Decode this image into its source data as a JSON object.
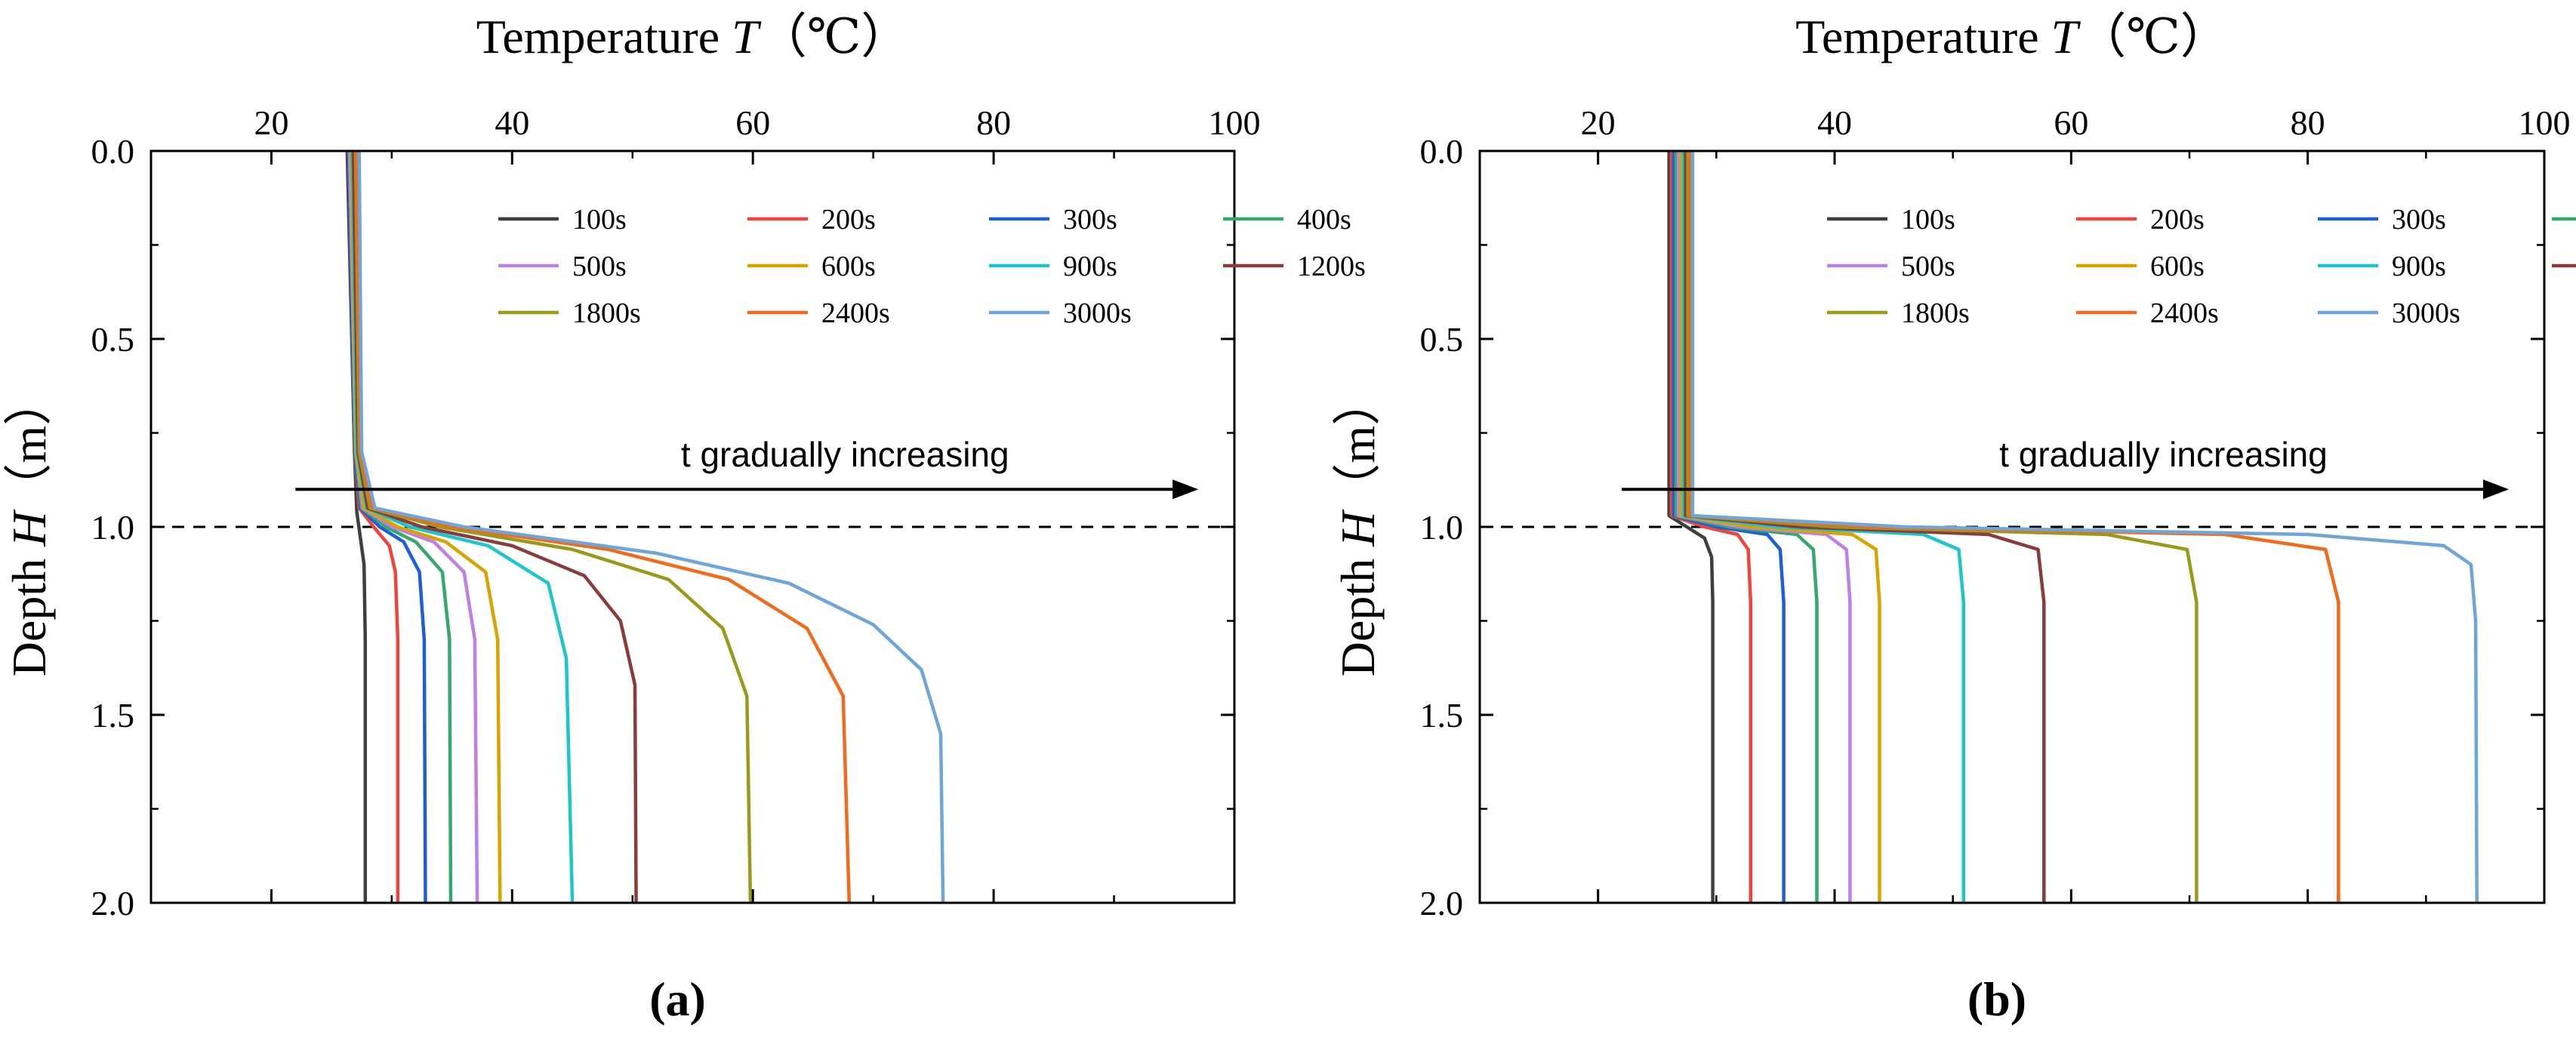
{
  "colors": {
    "100s": "#3f3f3f",
    "200s": "#f0443a",
    "300s": "#1f5fd6",
    "400s": "#35a86b",
    "500s": "#bf7fe6",
    "600s": "#d9a300",
    "900s": "#1cc6cc",
    "1200s": "#8a3b3b",
    "1800s": "#9a9a1a",
    "2400s": "#f26a1b",
    "3000s": "#6ea6d9"
  },
  "chart_data": [
    {
      "type": "line",
      "panel_label": "(a)",
      "xlabel_prefix": "Temperature ",
      "xlabel_var": "T",
      "xlabel_unit": "（℃）",
      "ylabel_prefix": "Depth ",
      "ylabel_var": "H",
      "ylabel_unit": "（m）",
      "xlim": [
        10,
        100
      ],
      "ylim": [
        2.0,
        0.0
      ],
      "xticks": [
        "20",
        "40",
        "60",
        "80",
        "100"
      ],
      "yticks": [
        "0.0",
        "0.5",
        "1.0",
        "1.5",
        "2.0"
      ],
      "dashed_interface_depth": 1.0,
      "annotation": {
        "text": "t gradually increasing",
        "arrow_from_x": 22,
        "arrow_to_x": 97,
        "depth": 0.9
      },
      "series": [
        {
          "name": "100s",
          "top_value": 26.3,
          "deep_value": 27.8,
          "points": [
            [
              26.3,
              0.0
            ],
            [
              26.9,
              0.8
            ],
            [
              27.1,
              0.96
            ],
            [
              27.4,
              1.03
            ],
            [
              27.7,
              1.1
            ],
            [
              27.8,
              1.3
            ],
            [
              27.8,
              2.0
            ]
          ]
        },
        {
          "name": "200s",
          "top_value": 26.4,
          "deep_value": 30.5,
          "points": [
            [
              26.4,
              0.0
            ],
            [
              26.9,
              0.8
            ],
            [
              27.3,
              0.95
            ],
            [
              28.5,
              1.0
            ],
            [
              29.8,
              1.05
            ],
            [
              30.3,
              1.12
            ],
            [
              30.5,
              1.3
            ],
            [
              30.5,
              2.0
            ]
          ]
        },
        {
          "name": "300s",
          "top_value": 26.4,
          "deep_value": 32.8,
          "points": [
            [
              26.4,
              0.0
            ],
            [
              26.9,
              0.8
            ],
            [
              27.4,
              0.95
            ],
            [
              29.0,
              1.0
            ],
            [
              31.0,
              1.04
            ],
            [
              32.3,
              1.12
            ],
            [
              32.7,
              1.3
            ],
            [
              32.8,
              2.0
            ]
          ]
        },
        {
          "name": "400s",
          "top_value": 26.5,
          "deep_value": 34.9,
          "points": [
            [
              26.5,
              0.0
            ],
            [
              27.0,
              0.8
            ],
            [
              27.5,
              0.95
            ],
            [
              29.5,
              1.0
            ],
            [
              32.0,
              1.04
            ],
            [
              34.2,
              1.12
            ],
            [
              34.8,
              1.3
            ],
            [
              34.9,
              2.0
            ]
          ]
        },
        {
          "name": "500s",
          "top_value": 26.5,
          "deep_value": 37.1,
          "points": [
            [
              26.5,
              0.0
            ],
            [
              27.0,
              0.8
            ],
            [
              27.6,
              0.95
            ],
            [
              30.0,
              1.0
            ],
            [
              33.5,
              1.04
            ],
            [
              36.0,
              1.12
            ],
            [
              36.9,
              1.3
            ],
            [
              37.1,
              2.0
            ]
          ]
        },
        {
          "name": "600s",
          "top_value": 26.6,
          "deep_value": 39.0,
          "points": [
            [
              26.6,
              0.0
            ],
            [
              27.0,
              0.8
            ],
            [
              27.7,
              0.95
            ],
            [
              30.5,
              1.0
            ],
            [
              34.5,
              1.04
            ],
            [
              37.8,
              1.12
            ],
            [
              38.8,
              1.3
            ],
            [
              39.0,
              2.0
            ]
          ]
        },
        {
          "name": "900s",
          "top_value": 26.7,
          "deep_value": 45.0,
          "points": [
            [
              26.7,
              0.0
            ],
            [
              27.1,
              0.8
            ],
            [
              27.9,
              0.95
            ],
            [
              31.5,
              1.0
            ],
            [
              38.0,
              1.05
            ],
            [
              43.0,
              1.15
            ],
            [
              44.5,
              1.35
            ],
            [
              45.0,
              2.0
            ]
          ]
        },
        {
          "name": "1200s",
          "top_value": 26.8,
          "deep_value": 50.3,
          "points": [
            [
              26.8,
              0.0
            ],
            [
              27.2,
              0.8
            ],
            [
              28.0,
              0.95
            ],
            [
              32.5,
              1.0
            ],
            [
              40.0,
              1.05
            ],
            [
              46.0,
              1.13
            ],
            [
              49.0,
              1.25
            ],
            [
              50.2,
              1.42
            ],
            [
              50.3,
              2.0
            ]
          ]
        },
        {
          "name": "1800s",
          "top_value": 27.0,
          "deep_value": 59.8,
          "points": [
            [
              27.0,
              0.0
            ],
            [
              27.3,
              0.8
            ],
            [
              28.2,
              0.95
            ],
            [
              34.0,
              1.0
            ],
            [
              45.0,
              1.06
            ],
            [
              53.0,
              1.14
            ],
            [
              57.5,
              1.27
            ],
            [
              59.5,
              1.45
            ],
            [
              59.8,
              2.0
            ]
          ]
        },
        {
          "name": "2400s",
          "top_value": 27.1,
          "deep_value": 68.0,
          "points": [
            [
              27.1,
              0.0
            ],
            [
              27.4,
              0.8
            ],
            [
              28.4,
              0.95
            ],
            [
              35.0,
              1.0
            ],
            [
              48.0,
              1.06
            ],
            [
              58.0,
              1.14
            ],
            [
              64.5,
              1.27
            ],
            [
              67.5,
              1.45
            ],
            [
              68.0,
              2.0
            ]
          ]
        },
        {
          "name": "3000s",
          "top_value": 27.3,
          "deep_value": 75.8,
          "points": [
            [
              27.3,
              0.0
            ],
            [
              27.5,
              0.8
            ],
            [
              28.6,
              0.95
            ],
            [
              36.0,
              1.0
            ],
            [
              52.0,
              1.07
            ],
            [
              63.0,
              1.15
            ],
            [
              70.0,
              1.26
            ],
            [
              74.0,
              1.38
            ],
            [
              75.6,
              1.55
            ],
            [
              75.8,
              2.0
            ]
          ]
        }
      ]
    },
    {
      "type": "line",
      "panel_label": "(b)",
      "xlabel_prefix": "Temperature ",
      "xlabel_var": "T",
      "xlabel_unit": "（℃）",
      "ylabel_prefix": "Depth ",
      "ylabel_var": "H",
      "ylabel_unit": "（m）",
      "xlim": [
        10,
        100
      ],
      "ylim": [
        2.0,
        0.0
      ],
      "xticks": [
        "20",
        "40",
        "60",
        "80",
        "100"
      ],
      "yticks": [
        "0.0",
        "0.5",
        "1.0",
        "1.5",
        "2.0"
      ],
      "dashed_interface_depth": 1.0,
      "annotation": {
        "text": "t gradually increasing",
        "arrow_from_x": 22,
        "arrow_to_x": 97,
        "depth": 0.9
      },
      "series": [
        {
          "name": "100s",
          "top_value": 26.0,
          "deep_value": 29.7,
          "points": [
            [
              26.0,
              0.0
            ],
            [
              26.0,
              0.97
            ],
            [
              27.5,
              1.0
            ],
            [
              29.0,
              1.03
            ],
            [
              29.6,
              1.08
            ],
            [
              29.7,
              1.2
            ],
            [
              29.7,
              2.0
            ]
          ]
        },
        {
          "name": "200s",
          "top_value": 26.2,
          "deep_value": 32.9,
          "points": [
            [
              26.2,
              0.0
            ],
            [
              26.2,
              0.97
            ],
            [
              29.0,
              1.0
            ],
            [
              31.8,
              1.02
            ],
            [
              32.7,
              1.06
            ],
            [
              32.9,
              1.2
            ],
            [
              32.9,
              2.0
            ]
          ]
        },
        {
          "name": "300s",
          "top_value": 26.4,
          "deep_value": 35.7,
          "points": [
            [
              26.4,
              0.0
            ],
            [
              26.4,
              0.97
            ],
            [
              30.0,
              1.0
            ],
            [
              34.3,
              1.02
            ],
            [
              35.4,
              1.06
            ],
            [
              35.7,
              1.2
            ],
            [
              35.7,
              2.0
            ]
          ]
        },
        {
          "name": "400s",
          "top_value": 26.6,
          "deep_value": 38.5,
          "points": [
            [
              26.6,
              0.0
            ],
            [
              26.6,
              0.97
            ],
            [
              31.0,
              1.0
            ],
            [
              36.8,
              1.02
            ],
            [
              38.2,
              1.06
            ],
            [
              38.5,
              1.2
            ],
            [
              38.5,
              2.0
            ]
          ]
        },
        {
          "name": "500s",
          "top_value": 26.8,
          "deep_value": 41.3,
          "points": [
            [
              26.8,
              0.0
            ],
            [
              26.8,
              0.97
            ],
            [
              32.0,
              1.0
            ],
            [
              39.3,
              1.02
            ],
            [
              41.0,
              1.06
            ],
            [
              41.3,
              1.2
            ],
            [
              41.3,
              2.0
            ]
          ]
        },
        {
          "name": "600s",
          "top_value": 27.0,
          "deep_value": 43.8,
          "points": [
            [
              27.0,
              0.0
            ],
            [
              27.0,
              0.97
            ],
            [
              33.0,
              1.0
            ],
            [
              41.5,
              1.02
            ],
            [
              43.5,
              1.06
            ],
            [
              43.8,
              1.2
            ],
            [
              43.8,
              2.0
            ]
          ]
        },
        {
          "name": "900s",
          "top_value": 27.2,
          "deep_value": 50.9,
          "points": [
            [
              27.2,
              0.0
            ],
            [
              27.2,
              0.97
            ],
            [
              35.0,
              1.0
            ],
            [
              47.5,
              1.02
            ],
            [
              50.5,
              1.06
            ],
            [
              50.9,
              1.2
            ],
            [
              50.9,
              2.0
            ]
          ]
        },
        {
          "name": "1200s",
          "top_value": 27.4,
          "deep_value": 57.7,
          "points": [
            [
              27.4,
              0.0
            ],
            [
              27.4,
              0.97
            ],
            [
              37.0,
              1.0
            ],
            [
              53.0,
              1.02
            ],
            [
              57.2,
              1.06
            ],
            [
              57.7,
              1.2
            ],
            [
              57.7,
              2.0
            ]
          ]
        },
        {
          "name": "1800s",
          "top_value": 27.6,
          "deep_value": 70.6,
          "points": [
            [
              27.6,
              0.0
            ],
            [
              27.6,
              0.97
            ],
            [
              40.0,
              1.0
            ],
            [
              63.0,
              1.02
            ],
            [
              69.8,
              1.06
            ],
            [
              70.6,
              1.2
            ],
            [
              70.6,
              2.0
            ]
          ]
        },
        {
          "name": "2400s",
          "top_value": 27.8,
          "deep_value": 82.6,
          "points": [
            [
              27.8,
              0.0
            ],
            [
              27.8,
              0.97
            ],
            [
              43.0,
              1.0
            ],
            [
              73.0,
              1.02
            ],
            [
              81.5,
              1.06
            ],
            [
              82.6,
              1.2
            ],
            [
              82.6,
              2.0
            ]
          ]
        },
        {
          "name": "3000s",
          "top_value": 28.0,
          "deep_value": 94.3,
          "points": [
            [
              28.0,
              0.0
            ],
            [
              28.0,
              0.97
            ],
            [
              46.0,
              1.0
            ],
            [
              80.0,
              1.02
            ],
            [
              91.5,
              1.05
            ],
            [
              93.8,
              1.1
            ],
            [
              94.2,
              1.25
            ],
            [
              94.3,
              2.0
            ]
          ]
        }
      ]
    }
  ]
}
